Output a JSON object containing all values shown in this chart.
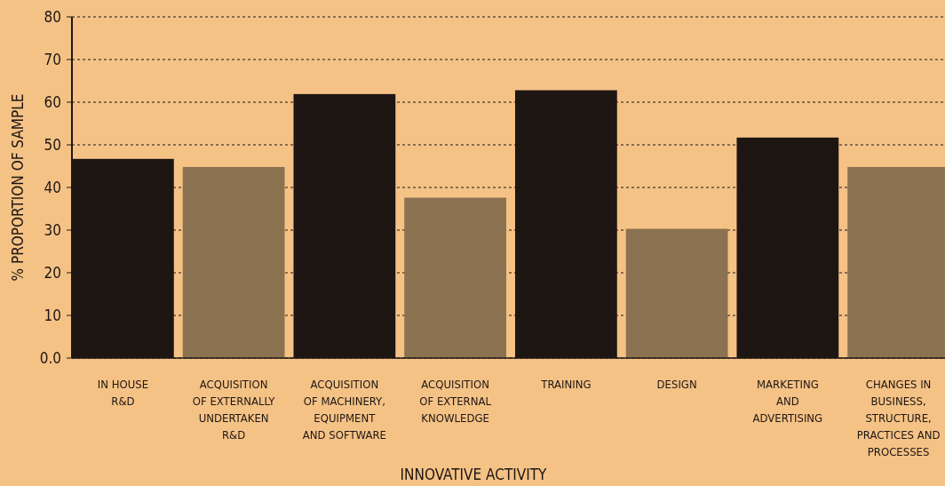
{
  "chart_data": {
    "type": "bar",
    "xlabel": "INNOVATIVE ACTIVITY",
    "ylabel": "% PROPORTION OF SAMPLE",
    "categories": [
      "IN HOUSE\nR&D",
      "ACQUISITION\nOF EXTERNALLY\nUNDERTAKEN\nR&D",
      "ACQUISITION\nOF MACHINERY,\nEQUIPMENT\nAND SOFTWARE",
      "ACQUISITION\nOF EXTERNAL\nKNOWLEDGE",
      "TRAINING",
      "DESIGN",
      "MARKETING\nAND\nADVERTISING",
      "CHANGES IN\nBUSINESS,\nSTRUCTURE,\nPRACTICES AND\nPROCESSES"
    ],
    "values": [
      46.7,
      44.8,
      61.9,
      37.6,
      62.8,
      30.3,
      51.7,
      44.8
    ],
    "colors": [
      "#1e1613",
      "#8b7251",
      "#1e1613",
      "#8b7251",
      "#1e1613",
      "#8b7251",
      "#1e1613",
      "#8b7251"
    ],
    "ylim": [
      0,
      80
    ],
    "yticks": [
      {
        "value": 0,
        "label": "0.0"
      },
      10,
      20,
      30,
      40,
      50,
      60,
      70,
      80
    ],
    "grid": "y"
  }
}
